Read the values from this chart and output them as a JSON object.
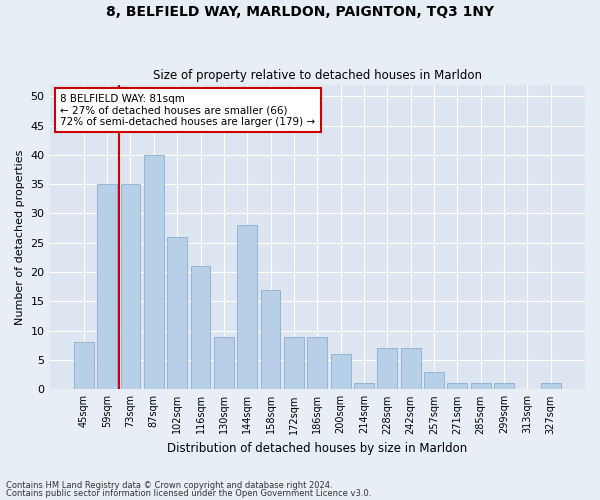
{
  "title": "8, BELFIELD WAY, MARLDON, PAIGNTON, TQ3 1NY",
  "subtitle": "Size of property relative to detached houses in Marldon",
  "xlabel": "Distribution of detached houses by size in Marldon",
  "ylabel": "Number of detached properties",
  "categories": [
    "45sqm",
    "59sqm",
    "73sqm",
    "87sqm",
    "102sqm",
    "116sqm",
    "130sqm",
    "144sqm",
    "158sqm",
    "172sqm",
    "186sqm",
    "200sqm",
    "214sqm",
    "228sqm",
    "242sqm",
    "257sqm",
    "271sqm",
    "285sqm",
    "299sqm",
    "313sqm",
    "327sqm"
  ],
  "values": [
    8,
    35,
    35,
    40,
    26,
    21,
    9,
    28,
    17,
    9,
    9,
    6,
    1,
    7,
    7,
    3,
    1,
    1,
    1,
    0,
    1
  ],
  "bar_color": "#b8cfe8",
  "bar_edge_color": "#8ab0d0",
  "vline_x": 1.5,
  "vline_color": "#cc0000",
  "annotation_text": "8 BELFIELD WAY: 81sqm\n← 27% of detached houses are smaller (66)\n72% of semi-detached houses are larger (179) →",
  "annotation_box_color": "#ffffff",
  "annotation_box_edge": "#cc0000",
  "ylim": [
    0,
    52
  ],
  "yticks": [
    0,
    5,
    10,
    15,
    20,
    25,
    30,
    35,
    40,
    45,
    50
  ],
  "bg_color": "#dde6f0",
  "fig_bg_color": "#e8eef5",
  "grid_color": "#ffffff",
  "footnote1": "Contains HM Land Registry data © Crown copyright and database right 2024.",
  "footnote2": "Contains public sector information licensed under the Open Government Licence v3.0."
}
